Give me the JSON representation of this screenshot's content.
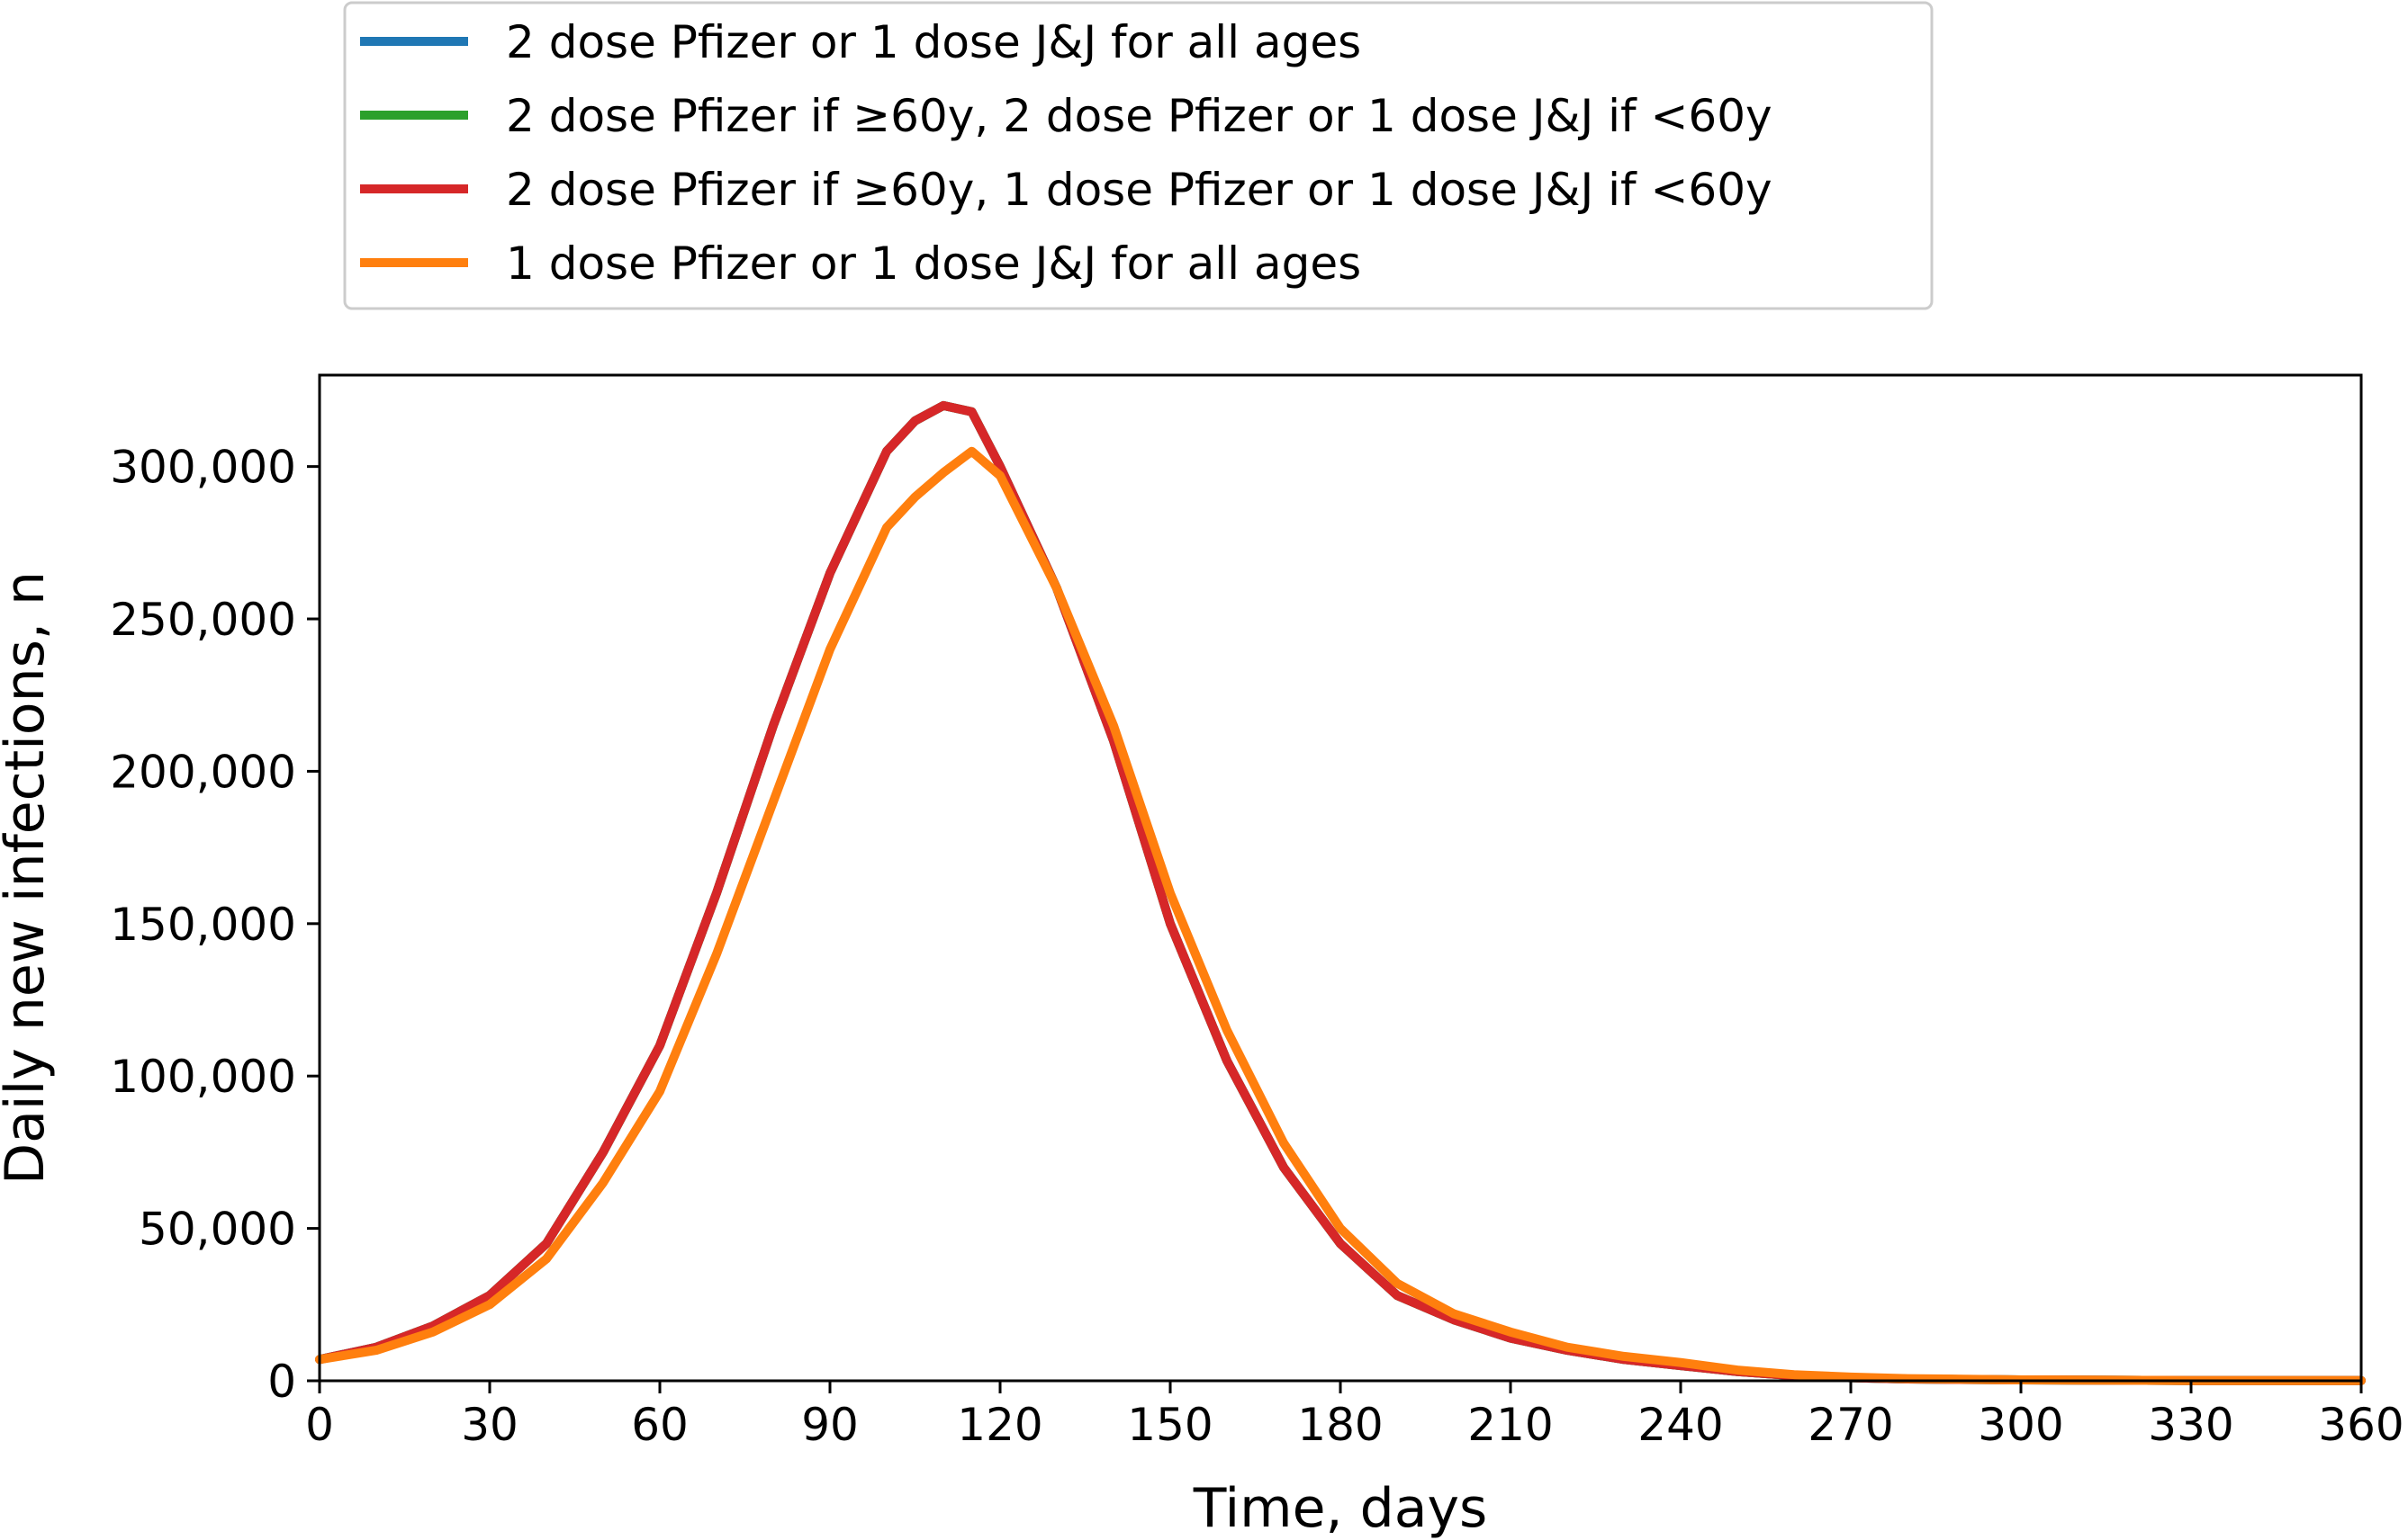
{
  "chart_data": {
    "type": "line",
    "xlabel": "Time, days",
    "ylabel": "Daily new infections, n",
    "xlim": [
      0,
      360
    ],
    "ylim": [
      0,
      330000
    ],
    "xticks": [
      0,
      30,
      60,
      90,
      120,
      150,
      180,
      210,
      240,
      270,
      300,
      330,
      360
    ],
    "yticks": [
      0,
      50000,
      100000,
      150000,
      200000,
      250000,
      300000
    ],
    "ytick_labels": [
      "0",
      "50,000",
      "100,000",
      "150,000",
      "200,000",
      "250,000",
      "300,000"
    ],
    "grid": false,
    "legend_position": "top",
    "x": [
      0,
      10,
      20,
      30,
      40,
      50,
      60,
      70,
      80,
      90,
      100,
      105,
      110,
      115,
      120,
      130,
      140,
      150,
      160,
      170,
      180,
      190,
      200,
      210,
      220,
      230,
      240,
      250,
      260,
      270,
      280,
      300,
      330,
      360
    ],
    "series": [
      {
        "name": "2 dose Pfizer or 1 dose J&J for all ages",
        "color": "#1f77b4",
        "values": [
          7000,
          11000,
          18000,
          28000,
          45000,
          75000,
          110000,
          160000,
          215000,
          265000,
          305000,
          315000,
          320000,
          318000,
          300000,
          260000,
          210000,
          150000,
          105000,
          70000,
          45000,
          28000,
          20000,
          14000,
          10000,
          7000,
          5000,
          3000,
          1700,
          1000,
          600,
          300,
          100,
          50
        ]
      },
      {
        "name": "2 dose Pfizer if ≥60y, 2 dose Pfizer or 1 dose J&J if <60y",
        "color": "#2ca02c",
        "values": [
          7000,
          11000,
          18000,
          28000,
          45000,
          75000,
          110000,
          160000,
          215000,
          265000,
          305000,
          315000,
          320000,
          318000,
          300000,
          260000,
          210000,
          150000,
          105000,
          70000,
          45000,
          28000,
          20000,
          14000,
          10000,
          7000,
          5000,
          3000,
          1700,
          1000,
          600,
          300,
          100,
          50
        ]
      },
      {
        "name": "2 dose Pfizer if ≥60y, 1 dose Pfizer or 1 dose J&J if <60y",
        "color": "#d62728",
        "values": [
          7000,
          11000,
          18000,
          28000,
          45000,
          75000,
          110000,
          160000,
          215000,
          265000,
          305000,
          315000,
          320000,
          318000,
          300000,
          260000,
          210000,
          150000,
          105000,
          70000,
          45000,
          28000,
          20000,
          14000,
          10000,
          7000,
          5000,
          3000,
          1700,
          1000,
          600,
          300,
          100,
          50
        ]
      },
      {
        "name": "1 dose Pfizer or 1 dose J&J for all ages",
        "color": "#ff7f0e",
        "values": [
          7000,
          10000,
          16000,
          25000,
          40000,
          65000,
          95000,
          140000,
          190000,
          240000,
          280000,
          290000,
          298000,
          305000,
          297000,
          260000,
          215000,
          160000,
          115000,
          78000,
          50000,
          32000,
          22000,
          16000,
          11000,
          8000,
          6000,
          3500,
          2000,
          1200,
          700,
          300,
          100,
          50
        ]
      }
    ]
  }
}
